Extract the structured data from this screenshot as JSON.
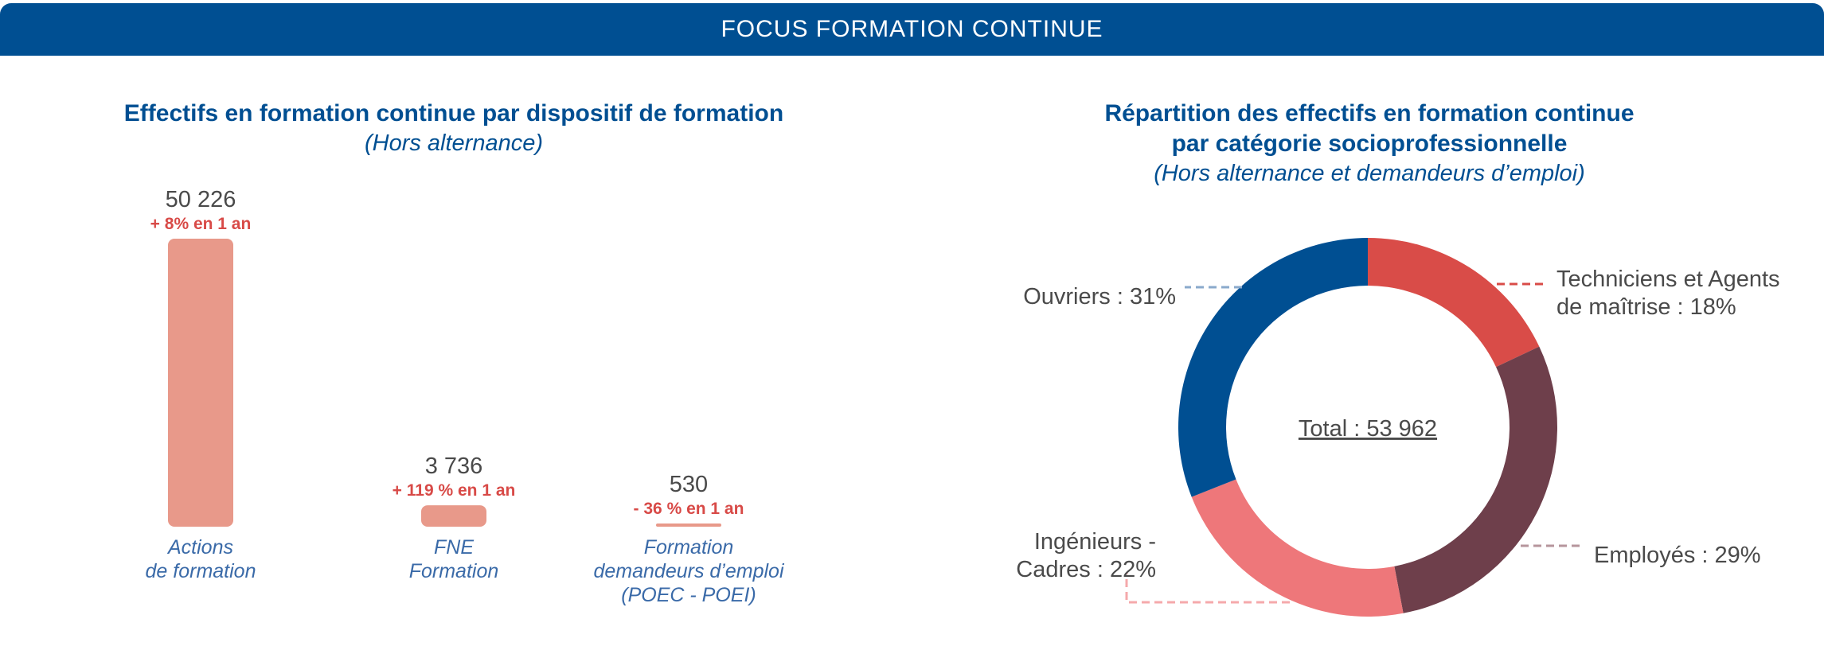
{
  "banner": {
    "title": "FOCUS FORMATION CONTINUE"
  },
  "chart_data": [
    {
      "type": "bar",
      "title": "Effectifs en formation continue par dispositif de formation",
      "subtitle": "(Hors alternance)",
      "categories": [
        [
          "Actions",
          "de formation"
        ],
        [
          "FNE",
          "Formation"
        ],
        [
          "Formation",
          "demandeurs d’emploi",
          "(POEC - POEI)"
        ]
      ],
      "values": [
        50226,
        3736,
        530
      ],
      "value_labels": [
        "50 226",
        "3 736",
        "530"
      ],
      "change_labels": [
        "+ 8% en 1 an",
        "+ 119 % en 1 an",
        "- 36 % en 1 an"
      ],
      "bar_color": "#e8998a",
      "change_color": "#d84a47"
    },
    {
      "type": "pie",
      "donut": true,
      "title": [
        "Répartition des effectifs en formation continue",
        "par catégorie socioprofessionnelle"
      ],
      "subtitle": "(Hors alternance et demandeurs d’emploi)",
      "center_label": "Total : 53 962",
      "total": 53962,
      "slices": [
        {
          "label": [
            "Techniciens et Agents",
            "de maîtrise : 18%"
          ],
          "value": 18,
          "color": "#d94c48"
        },
        {
          "label": [
            "Employés : 29%"
          ],
          "value": 29,
          "color": "#6e3f4b"
        },
        {
          "label": [
            "Ingénieurs -",
            "Cadres : 22%"
          ],
          "value": 22,
          "color": "#ee777a"
        },
        {
          "label": [
            "Ouvriers : 31%"
          ],
          "value": 31,
          "color": "#004f92"
        }
      ]
    }
  ]
}
